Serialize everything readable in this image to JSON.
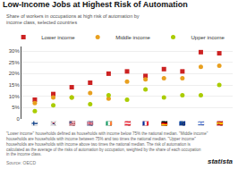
{
  "chart_data": {
    "type": "scatter",
    "title": "Low-Income Jobs at Highest Risk of Automation",
    "subtitle": "Share of workers in occupations at high risk of automation by income class, selected countries",
    "categories": [
      "🇫🇮",
      "🇰🇷",
      "🇺🇸",
      "🇬🇧",
      "🇮🇪",
      "🇦🇹",
      "🇫🇷",
      "🇩🇪",
      "🇪🇺",
      "🇮🇱",
      "🇪🇸"
    ],
    "series": [
      {
        "name": "Lower income",
        "color": "#cc2222",
        "marker": "square",
        "values": [
          8.5,
          11.0,
          14.0,
          16.0,
          20.0,
          21.0,
          19.0,
          22.0,
          21.0,
          29.5,
          29.0
        ]
      },
      {
        "name": "Middle income",
        "color": "#e8a020",
        "marker": "circle",
        "values": [
          7.0,
          9.5,
          9.5,
          11.5,
          9.0,
          16.5,
          17.5,
          18.0,
          18.0,
          23.0,
          23.5
        ]
      },
      {
        "name": "Upper income",
        "color": "#aacc00",
        "marker": "circle",
        "values": [
          3.5,
          6.0,
          9.5,
          6.5,
          10.5,
          8.5,
          13.0,
          9.5,
          10.5,
          10.5,
          15.0
        ]
      }
    ],
    "ylim": [
      0,
      32
    ],
    "yticks": [
      0,
      {
        "value": 5,
        "label": "5%"
      },
      {
        "value": 10,
        "label": "10%"
      },
      {
        "value": 15,
        "label": "15%"
      },
      {
        "value": 20,
        "label": "20%"
      },
      {
        "value": 25,
        "label": "25%"
      },
      {
        "value": 30,
        "label": "30%"
      }
    ],
    "grid": "y",
    "legend": "top",
    "note": "\"Lower income\" households defined as households with income below 75% the national median. \"Middle income\" households are households with income between 75% and two times the national median. \"Upper income\" households are households with income above two times the national median. The risk of automation is calculated as the average of the risks of automation by occupation, weighted by the share of each occupation in the income class.",
    "source": "Source: OECD",
    "watermark": "statista"
  }
}
